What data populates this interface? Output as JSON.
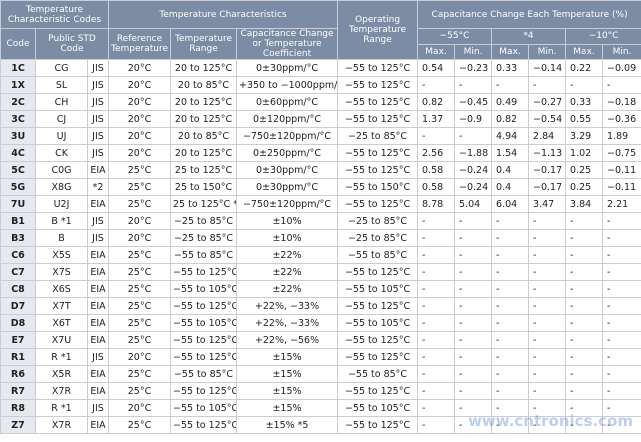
{
  "header": {
    "group_codes": "Temperature Characteristic Codes",
    "group_characteristics": "Temperature Characteristics",
    "operating_range": "Operating Temperature Range",
    "group_change": "Capacitance Change Each Temperature (%)",
    "code": "Code",
    "public_std": "Public STD Code",
    "reference": "Reference Temperature",
    "range": "Temperature Range",
    "coefficient": "Capacitance Change or Temperature Coefficient",
    "temps": [
      "−55°C",
      "*4",
      "−10°C"
    ],
    "sub": [
      "Max.",
      "Min.",
      "Max.",
      "Min.",
      "Max.",
      "Min."
    ]
  },
  "rows": [
    [
      "1C",
      "CG",
      "JIS",
      "20°C",
      "20 to 125°C",
      "0±30ppm/°C",
      "−55 to 125°C",
      "0.54",
      "−0.23",
      "0.33",
      "−0.14",
      "0.22",
      "−0.09"
    ],
    [
      "1X",
      "SL",
      "JIS",
      "20°C",
      "20 to 85°C",
      "+350 to −1000ppm/°C",
      "−55 to 125°C",
      "-",
      "-",
      "-",
      "-",
      "-",
      "-"
    ],
    [
      "2C",
      "CH",
      "JIS",
      "20°C",
      "20 to 125°C",
      "0±60ppm/°C",
      "−55 to 125°C",
      "0.82",
      "−0.45",
      "0.49",
      "−0.27",
      "0.33",
      "−0.18"
    ],
    [
      "3C",
      "CJ",
      "JIS",
      "20°C",
      "20 to 125°C",
      "0±120ppm/°C",
      "−55 to 125°C",
      "1.37",
      "−0.9",
      "0.82",
      "−0.54",
      "0.55",
      "−0.36"
    ],
    [
      "3U",
      "UJ",
      "JIS",
      "20°C",
      "20 to 85°C",
      "−750±120ppm/°C",
      "−25 to 85°C",
      "-",
      "-",
      "4.94",
      "2.84",
      "3.29",
      "1.89"
    ],
    [
      "4C",
      "CK",
      "JIS",
      "20°C",
      "20 to 125°C",
      "0±250ppm/°C",
      "−55 to 125°C",
      "2.56",
      "−1.88",
      "1.54",
      "−1.13",
      "1.02",
      "−0.75"
    ],
    [
      "5C",
      "C0G",
      "EIA",
      "25°C",
      "25 to 125°C",
      "0±30ppm/°C",
      "−55 to 125°C",
      "0.58",
      "−0.24",
      "0.4",
      "−0.17",
      "0.25",
      "−0.11"
    ],
    [
      "5G",
      "X8G",
      "*2",
      "25°C",
      "25 to 150°C",
      "0±30ppm/°C",
      "−55 to 150°C",
      "0.58",
      "−0.24",
      "0.4",
      "−0.17",
      "0.25",
      "−0.11"
    ],
    [
      "7U",
      "U2J",
      "EIA",
      "25°C",
      "25 to 125°C *3",
      "−750±120ppm/°C",
      "−55 to 125°C",
      "8.78",
      "5.04",
      "6.04",
      "3.47",
      "3.84",
      "2.21"
    ],
    [
      "B1",
      "B *1",
      "JIS",
      "20°C",
      "−25 to 85°C",
      "±10%",
      "−25 to 85°C",
      "-",
      "-",
      "-",
      "-",
      "-",
      "-"
    ],
    [
      "B3",
      "B",
      "JIS",
      "20°C",
      "−25 to 85°C",
      "±10%",
      "−25 to 85°C",
      "-",
      "-",
      "-",
      "-",
      "-",
      "-"
    ],
    [
      "C6",
      "X5S",
      "EIA",
      "25°C",
      "−55 to 85°C",
      "±22%",
      "−55 to 85°C",
      "-",
      "-",
      "-",
      "-",
      "-",
      "-"
    ],
    [
      "C7",
      "X7S",
      "EIA",
      "25°C",
      "−55 to 125°C",
      "±22%",
      "−55 to 125°C",
      "-",
      "-",
      "-",
      "-",
      "-",
      "-"
    ],
    [
      "C8",
      "X6S",
      "EIA",
      "25°C",
      "−55 to 105°C",
      "±22%",
      "−55 to 105°C",
      "-",
      "-",
      "-",
      "-",
      "-",
      "-"
    ],
    [
      "D7",
      "X7T",
      "EIA",
      "25°C",
      "−55 to 125°C",
      "+22%, −33%",
      "−55 to 125°C",
      "-",
      "-",
      "-",
      "-",
      "-",
      "-"
    ],
    [
      "D8",
      "X6T",
      "EIA",
      "25°C",
      "−55 to 105°C",
      "+22%, −33%",
      "−55 to 105°C",
      "-",
      "-",
      "-",
      "-",
      "-",
      "-"
    ],
    [
      "E7",
      "X7U",
      "EIA",
      "25°C",
      "−55 to 125°C",
      "+22%, −56%",
      "−55 to 125°C",
      "-",
      "-",
      "-",
      "-",
      "-",
      "-"
    ],
    [
      "R1",
      "R *1",
      "JIS",
      "20°C",
      "−55 to 125°C",
      "±15%",
      "−55 to 125°C",
      "-",
      "-",
      "-",
      "-",
      "-",
      "-"
    ],
    [
      "R6",
      "X5R",
      "EIA",
      "25°C",
      "−55 to 85°C",
      "±15%",
      "−55 to 85°C",
      "-",
      "-",
      "-",
      "-",
      "-",
      "-"
    ],
    [
      "R7",
      "X7R",
      "EIA",
      "25°C",
      "−55 to 125°C",
      "±15%",
      "−55 to 125°C",
      "-",
      "-",
      "-",
      "-",
      "-",
      "-"
    ],
    [
      "R8",
      "R *1",
      "JIS",
      "20°C",
      "−55 to 105°C",
      "±15%",
      "−55 to 105°C",
      "-",
      "-",
      "-",
      "-",
      "-",
      "-"
    ],
    [
      "Z7",
      "X7R",
      "EIA",
      "25°C",
      "−55 to 125°C",
      "±15% *5",
      "−55 to 125°C",
      "-",
      "-",
      "-",
      "-",
      "-",
      "-"
    ]
  ],
  "watermark": "www.cntronics.com"
}
